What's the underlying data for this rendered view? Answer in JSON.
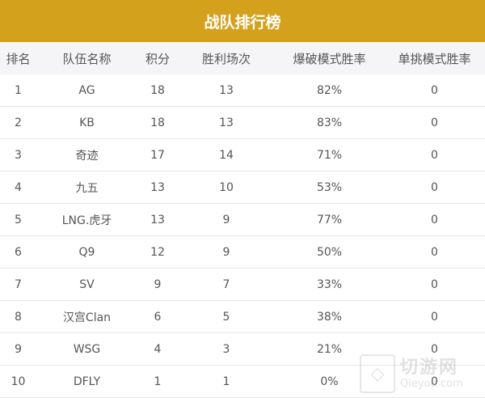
{
  "title": "战队排行榜",
  "colors": {
    "header_bg": "#d4a11c",
    "column_header_bg": "#f5f4f6"
  },
  "columns": [
    "排名",
    "队伍名称",
    "积分",
    "胜利场次",
    "爆破模式胜率",
    "单挑模式胜率"
  ],
  "rows": [
    [
      "1",
      "AG",
      "18",
      "13",
      "82%",
      "0"
    ],
    [
      "2",
      "KB",
      "18",
      "13",
      "83%",
      "0"
    ],
    [
      "3",
      "奇迹",
      "17",
      "14",
      "71%",
      "0"
    ],
    [
      "4",
      "九五",
      "13",
      "10",
      "53%",
      "0"
    ],
    [
      "5",
      "LNG.虎牙",
      "13",
      "9",
      "77%",
      "0"
    ],
    [
      "6",
      "Q9",
      "12",
      "9",
      "50%",
      "0"
    ],
    [
      "7",
      "SV",
      "9",
      "7",
      "33%",
      "0"
    ],
    [
      "8",
      "汉宫Clan",
      "6",
      "5",
      "38%",
      "0"
    ],
    [
      "9",
      "WSG",
      "4",
      "3",
      "21%",
      "0"
    ],
    [
      "10",
      "DFLY",
      "1",
      "1",
      "0%",
      "0"
    ]
  ],
  "watermark": {
    "logo_text": "切游网",
    "domain": "Qieyou.com"
  }
}
